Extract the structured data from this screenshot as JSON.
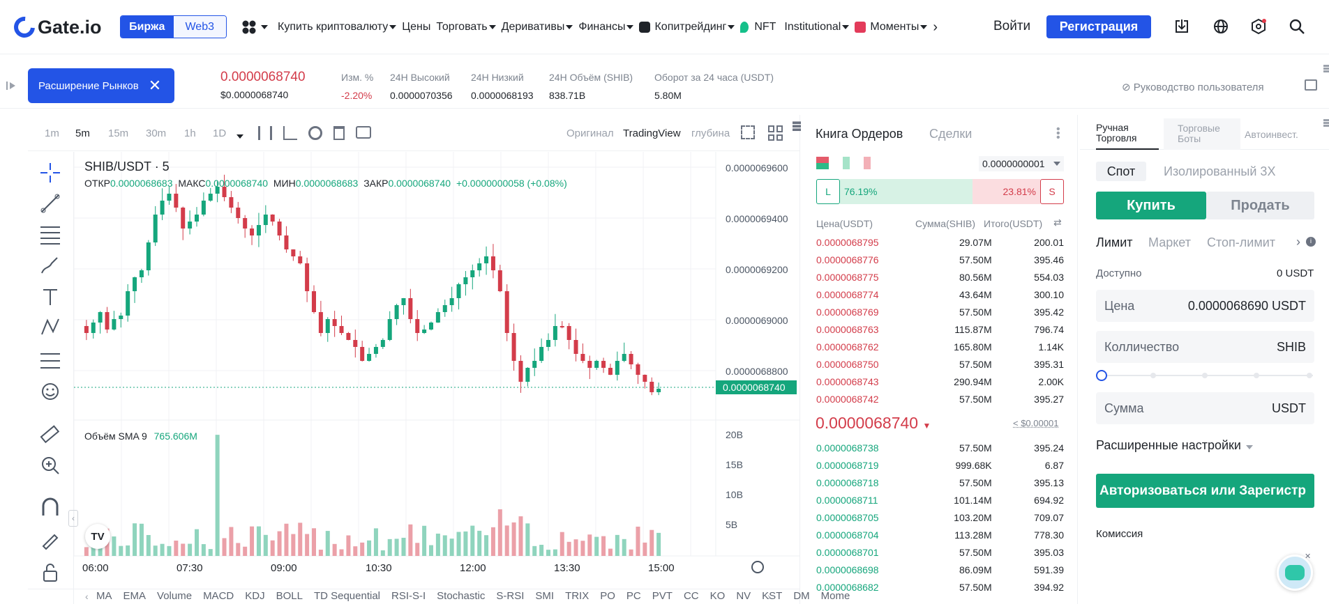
{
  "nav": {
    "logo": "Gate.io",
    "seg_exchange": "Биржа",
    "seg_web3": "Web3",
    "items": [
      "Купить криптовалюту",
      "Цены",
      "Торговать",
      "Деривативы",
      "Финансы",
      "Копитрейдинг",
      "NFT",
      "Institutional",
      "Моменты"
    ],
    "login": "Войти",
    "register": "Регистрация"
  },
  "ticker": {
    "expand_label": "Расширение Рынков",
    "price": "0.0000068740",
    "price_usd": "$0.0000068740",
    "change_label": "Изм. %",
    "change": "-2.20%",
    "high_label": "24Н Высокий",
    "high": "0.0000070356",
    "low_label": "24Н Низкий",
    "low": "0.0000068193",
    "vol_label": "24Н Объём (SHIB)",
    "vol": "838.71B",
    "turnover_label": "Оборот за 24 часа (USDT)",
    "turnover": "5.80M",
    "guide": "Руководство пользователя"
  },
  "chart": {
    "timeframes": [
      "1m",
      "5m",
      "15m",
      "30m",
      "1h",
      "1D"
    ],
    "active_tf": "5m",
    "views": [
      "Оригинал",
      "TradingView",
      "глубина"
    ],
    "symbol": "SHIB/USDT · 5",
    "ohlc": {
      "o_label": "ОТКР",
      "o": "0.0000068683",
      "h_label": "МАКС",
      "h": "0.0000068740",
      "l_label": "МИН",
      "l": "0.0000068683",
      "c_label": "ЗАКР",
      "c": "0.0000068740",
      "chg": "+0.0000000058 (+0.08%)"
    },
    "price_axis": [
      "0.0000069600",
      "0.0000069400",
      "0.0000069200",
      "0.0000069000",
      "0.0000068800"
    ],
    "last_price": "0.0000068740",
    "vol_label": "Объём SMA 9",
    "vol_value": "765.606M",
    "vol_axis": [
      "20B",
      "15B",
      "10B",
      "5B"
    ],
    "time_axis": [
      "06:00",
      "07:30",
      "09:00",
      "10:30",
      "12:00",
      "13:30",
      "15:00"
    ],
    "indicators": [
      "MA",
      "EMA",
      "Volume",
      "MACD",
      "KDJ",
      "BOLL",
      "TD Sequential",
      "RSI-S-I",
      "Stochastic",
      "S-RSI",
      "SMI",
      "TRIX",
      "PO",
      "PC",
      "PVT",
      "CC",
      "KO",
      "NV",
      "KST",
      "DM",
      "Mome"
    ]
  },
  "orderbook": {
    "tab_book": "Книга Ордеров",
    "tab_trades": "Сделки",
    "precision": "0.0000000001",
    "long_pct": "76.19%",
    "short_pct": "23.81%",
    "long": "L",
    "short": "S",
    "col_price": "Цена(USDT)",
    "col_amount": "Сумма(SHIB)",
    "col_total": "Итого(USDT)",
    "asks": [
      [
        "0.0000068795",
        "29.07M",
        "200.01"
      ],
      [
        "0.0000068776",
        "57.50M",
        "395.46"
      ],
      [
        "0.0000068775",
        "80.56M",
        "554.03"
      ],
      [
        "0.0000068774",
        "43.64M",
        "300.10"
      ],
      [
        "0.0000068769",
        "57.50M",
        "395.42"
      ],
      [
        "0.0000068763",
        "115.87M",
        "796.74"
      ],
      [
        "0.0000068762",
        "165.80M",
        "1.14K"
      ],
      [
        "0.0000068750",
        "57.50M",
        "395.31"
      ],
      [
        "0.0000068743",
        "290.94M",
        "2.00K"
      ],
      [
        "0.0000068742",
        "57.50M",
        "395.27"
      ]
    ],
    "mid_price": "0.0000068740",
    "mid_usd": "< $0.00001",
    "bids": [
      [
        "0.0000068738",
        "57.50M",
        "395.24"
      ],
      [
        "0.0000068719",
        "999.68K",
        "6.87"
      ],
      [
        "0.0000068718",
        "57.50M",
        "395.13"
      ],
      [
        "0.0000068711",
        "101.14M",
        "694.92"
      ],
      [
        "0.0000068705",
        "103.20M",
        "709.07"
      ],
      [
        "0.0000068704",
        "113.28M",
        "778.30"
      ],
      [
        "0.0000068701",
        "57.50M",
        "395.03"
      ],
      [
        "0.0000068698",
        "86.09M",
        "591.39"
      ],
      [
        "0.0000068682",
        "57.50M",
        "394.92"
      ]
    ]
  },
  "trade": {
    "tabs": [
      "Ручная Торговля",
      "Торговые Боты",
      "Автоинвест."
    ],
    "modes": [
      "Спот",
      "Изолированный 3X"
    ],
    "buy": "Купить",
    "sell": "Продать",
    "order_types": [
      "Лимит",
      "Маркет",
      "Стоп-лимит"
    ],
    "avail_label": "Доступно",
    "avail": "0 USDT",
    "price_label": "Цена",
    "price_value": "0.0000068690 USDT",
    "qty_label": "Колличество",
    "qty_unit": "SHIB",
    "sum_label": "Сумма",
    "sum_unit": "USDT",
    "advanced": "Расширенные настройки",
    "auth": "Авторизоваться или Зарегистр",
    "fee": "Комиссия"
  }
}
